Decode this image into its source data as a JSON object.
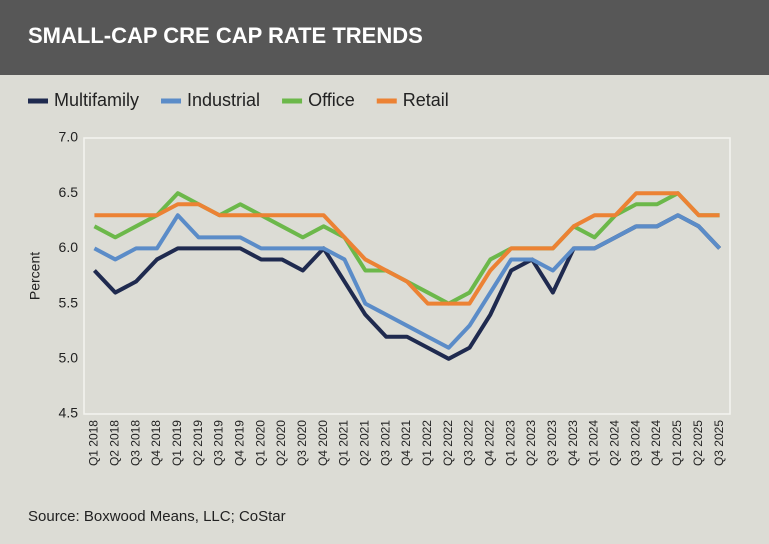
{
  "chart_data": {
    "type": "line",
    "title": "SMALL-CAP CRE CAP RATE TRENDS",
    "y_label": "Percent",
    "source": "Source: Boxwood Means, LLC; CoStar",
    "categories": [
      "Q1 2018",
      "Q2 2018",
      "Q3 2018",
      "Q4 2018",
      "Q1 2019",
      "Q2 2019",
      "Q3 2019",
      "Q4 2019",
      "Q1 2020",
      "Q2 2020",
      "Q3 2020",
      "Q4 2020",
      "Q1 2021",
      "Q2 2021",
      "Q3 2021",
      "Q4 2021",
      "Q1 2022",
      "Q2 2022",
      "Q3 2022",
      "Q4 2022",
      "Q1 2023",
      "Q2 2023",
      "Q3 2023",
      "Q4 2023",
      "Q1 2024",
      "Q2 2024",
      "Q3 2024",
      "Q4 2024",
      "Q1 2025",
      "Q2 2025",
      "Q3 2025"
    ],
    "series": [
      {
        "name": "Multifamily",
        "color": "#1f2a4f",
        "values": [
          5.8,
          5.6,
          5.7,
          5.9,
          6.0,
          6.0,
          6.0,
          6.0,
          5.9,
          5.9,
          5.8,
          6.0,
          5.7,
          5.4,
          5.2,
          5.2,
          5.1,
          5.0,
          5.1,
          5.4,
          5.8,
          5.9,
          5.6,
          6.0,
          6.0,
          6.1,
          6.2,
          6.2,
          6.3,
          6.2,
          6.0
        ]
      },
      {
        "name": "Industrial",
        "color": "#5b8cc8",
        "values": [
          6.0,
          5.9,
          6.0,
          6.0,
          6.3,
          6.1,
          6.1,
          6.1,
          6.0,
          6.0,
          6.0,
          6.0,
          5.9,
          5.5,
          5.4,
          5.3,
          5.2,
          5.1,
          5.3,
          5.6,
          5.9,
          5.9,
          5.8,
          6.0,
          6.0,
          6.1,
          6.2,
          6.2,
          6.3,
          6.2,
          6.0
        ]
      },
      {
        "name": "Office",
        "color": "#6cb84a",
        "values": [
          6.2,
          6.1,
          6.2,
          6.3,
          6.5,
          6.4,
          6.3,
          6.4,
          6.3,
          6.2,
          6.1,
          6.2,
          6.1,
          5.8,
          5.8,
          5.7,
          5.6,
          5.5,
          5.6,
          5.9,
          6.0,
          6.0,
          6.0,
          6.2,
          6.1,
          6.3,
          6.4,
          6.4,
          6.5,
          6.3,
          6.3
        ]
      },
      {
        "name": "Retail",
        "color": "#ec8234",
        "values": [
          6.3,
          6.3,
          6.3,
          6.3,
          6.4,
          6.4,
          6.3,
          6.3,
          6.3,
          6.3,
          6.3,
          6.3,
          6.1,
          5.9,
          5.8,
          5.7,
          5.5,
          5.5,
          5.5,
          5.8,
          6.0,
          6.0,
          6.0,
          6.2,
          6.3,
          6.3,
          6.5,
          6.5,
          6.5,
          6.3,
          6.3
        ]
      }
    ],
    "ylim": [
      4.5,
      7.0
    ],
    "yticks": [
      {
        "value": 4.5,
        "label": "4.5"
      },
      {
        "value": 5,
        "label": "5.0"
      },
      5.5,
      {
        "value": 6,
        "label": "6.0"
      },
      6.5,
      {
        "value": 7,
        "label": "7.0"
      }
    ],
    "grid": false,
    "legend": "top"
  }
}
